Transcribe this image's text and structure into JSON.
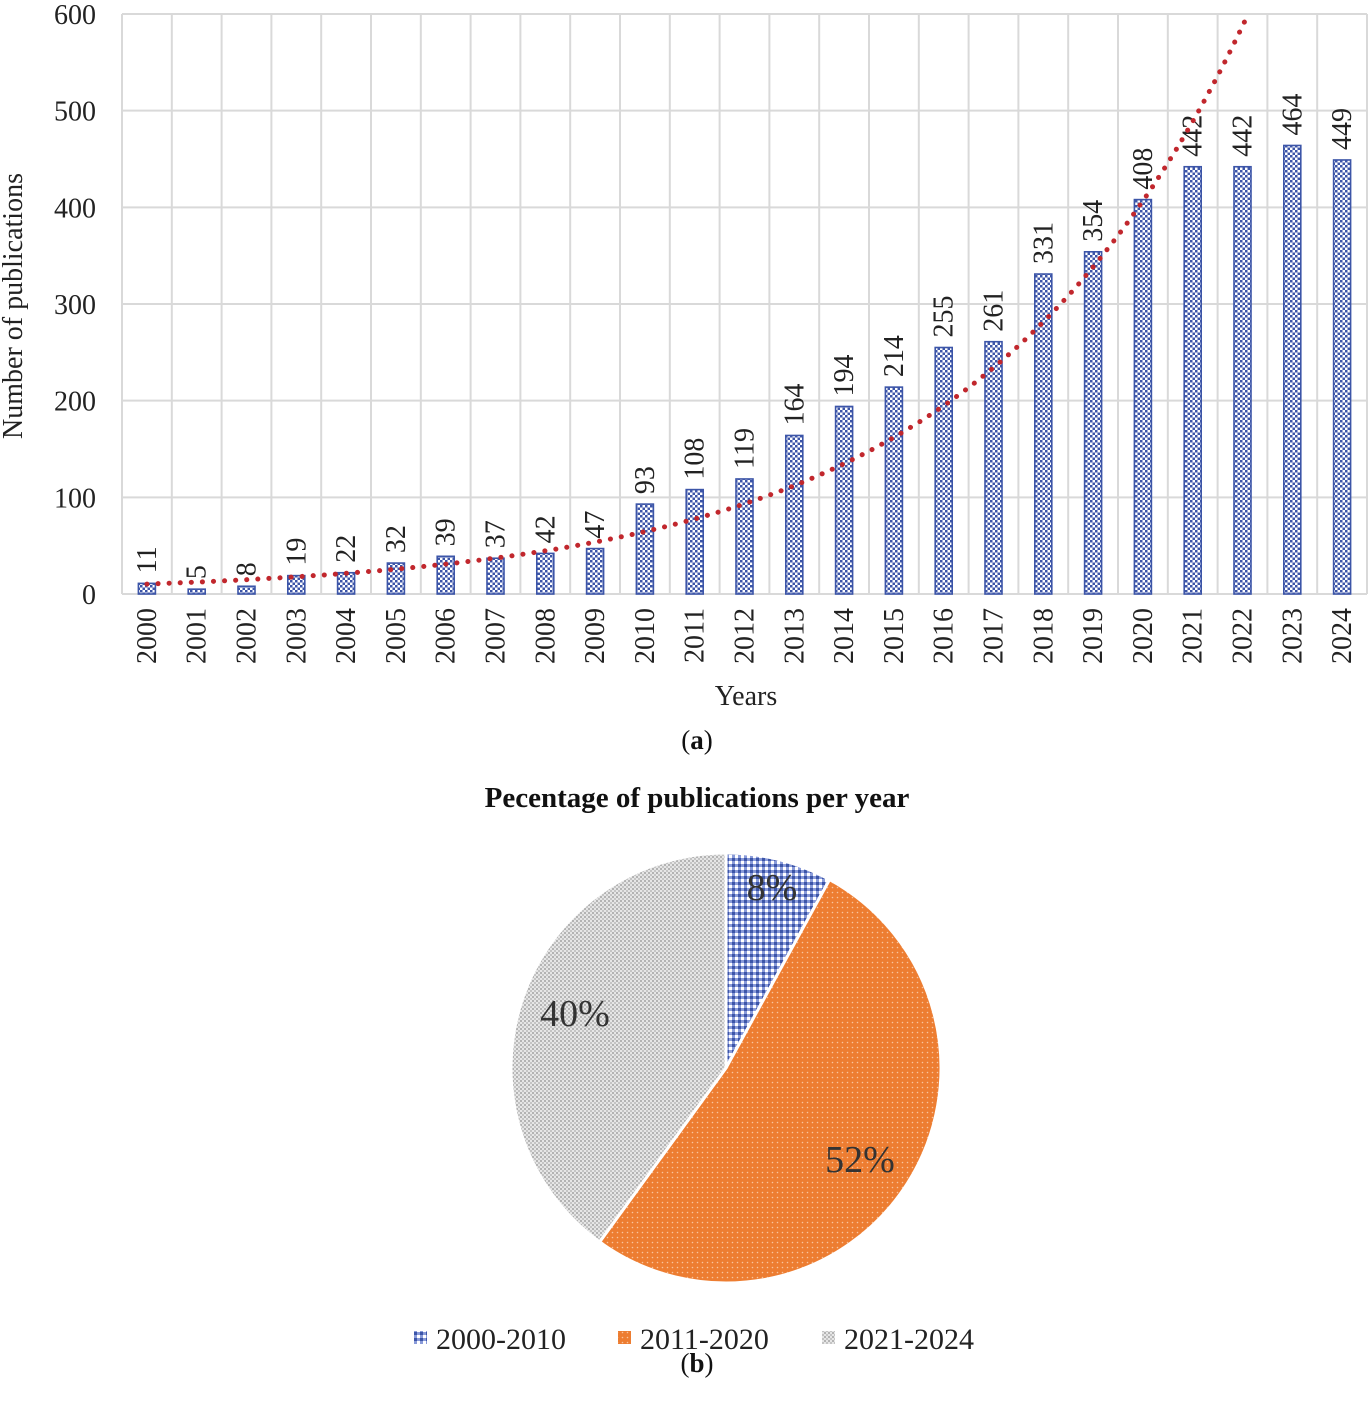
{
  "colors": {
    "bar_edge": "#3c55a8",
    "bar_fill": "#b9c5ea",
    "trend": "#c1272d",
    "grid": "#d9d9d9",
    "slice_a": "#7d8fd6",
    "slice_b": "#ed7d31",
    "slice_c": "#d0d0d0"
  },
  "chart_data": [
    {
      "type": "bar",
      "xlabel": "Years",
      "ylabel": "Number of publications",
      "ylim": [
        0,
        600
      ],
      "yticks": [
        "0",
        "100",
        "200",
        "300",
        "400",
        "500",
        "600"
      ],
      "categories": [
        "2000",
        "2001",
        "2002",
        "2003",
        "2004",
        "2005",
        "2006",
        "2007",
        "2008",
        "2009",
        "2010",
        "2011",
        "2012",
        "2013",
        "2014",
        "2015",
        "2016",
        "2017",
        "2018",
        "2019",
        "2020",
        "2021",
        "2022",
        "2023",
        "2024"
      ],
      "values": [
        11,
        5,
        8,
        19,
        22,
        32,
        39,
        37,
        42,
        47,
        93,
        108,
        119,
        164,
        194,
        214,
        255,
        261,
        331,
        354,
        408,
        442,
        442,
        464,
        449
      ],
      "value_labels": [
        "11",
        "5",
        "8",
        "19",
        "22",
        "32",
        "39",
        "37",
        "42",
        "47",
        "93",
        "108",
        "119",
        "164",
        "194",
        "214",
        "255",
        "261",
        "331",
        "354",
        "408",
        "442",
        "442",
        "464",
        "449"
      ],
      "trendline": "exponential (dotted)",
      "caption_label": "a"
    },
    {
      "type": "pie",
      "title": "Pecentage of publications per year",
      "labels": [
        "2000-2010",
        "2011-2020",
        "2021-2024"
      ],
      "values": [
        8,
        52,
        40
      ],
      "value_labels": [
        "8%",
        "52%",
        "40%"
      ],
      "legend_position": "bottom",
      "caption_label": "b"
    }
  ]
}
